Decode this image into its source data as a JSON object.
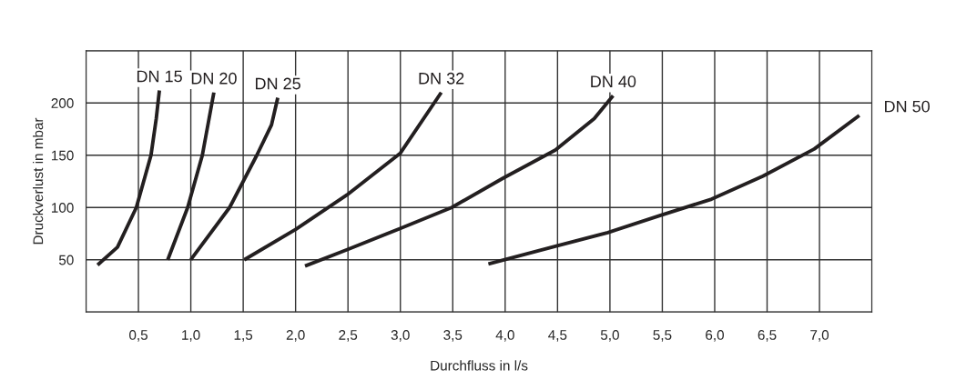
{
  "chart_data": {
    "type": "line",
    "xlabel": "Durchfluss in l/s",
    "ylabel": "Druckverlust in mbar",
    "xlim": [
      0,
      7.5
    ],
    "ylim": [
      0,
      250
    ],
    "xticks": [
      {
        "value": 0,
        "label": null
      },
      {
        "value": 0.5,
        "label": "0,5"
      },
      {
        "value": 1.0,
        "label": "1,0"
      },
      {
        "value": 1.5,
        "label": "1,5"
      },
      {
        "value": 2.0,
        "label": "2,0"
      },
      {
        "value": 2.5,
        "label": "2,5"
      },
      {
        "value": 3.0,
        "label": "3,0"
      },
      {
        "value": 3.5,
        "label": "3,5"
      },
      {
        "value": 4.0,
        "label": "4,0"
      },
      {
        "value": 4.5,
        "label": "4,5"
      },
      {
        "value": 5.0,
        "label": "5,0"
      },
      {
        "value": 5.5,
        "label": "5,5"
      },
      {
        "value": 6.0,
        "label": "6,0"
      },
      {
        "value": 6.5,
        "label": "6,5"
      },
      {
        "value": 7.0,
        "label": "7,0"
      },
      {
        "value": 7.5,
        "label": null
      }
    ],
    "yticks": [
      {
        "value": 0,
        "label": null
      },
      50,
      100,
      150,
      200,
      {
        "value": 250,
        "label": null
      }
    ],
    "grid": true,
    "legend": false,
    "marker": "none",
    "line_style": "solid",
    "series": [
      {
        "name": "DN 15",
        "color": "#231f20",
        "x": [
          0.11,
          0.3,
          0.48,
          0.62,
          0.67,
          0.7
        ],
        "values": [
          45,
          62,
          100,
          150,
          185,
          212
        ]
      },
      {
        "name": "DN 20",
        "color": "#231f20",
        "x": [
          0.78,
          0.97,
          1.11,
          1.22
        ],
        "values": [
          50,
          100,
          150,
          210
        ]
      },
      {
        "name": "DN 25",
        "color": "#231f20",
        "x": [
          1.0,
          1.37,
          1.63,
          1.77,
          1.83
        ],
        "values": [
          50,
          100,
          150,
          179,
          205
        ]
      },
      {
        "name": "DN 32",
        "color": "#231f20",
        "x": [
          1.51,
          2.0,
          2.49,
          3.0,
          3.39
        ],
        "values": [
          50,
          79,
          112,
          152,
          210
        ]
      },
      {
        "name": "DN 40",
        "color": "#231f20",
        "x": [
          2.09,
          2.5,
          3.0,
          3.49,
          3.98,
          4.48,
          4.85,
          5.03
        ],
        "values": [
          44,
          60,
          80,
          100,
          128,
          155,
          185,
          207
        ]
      },
      {
        "name": "DN 50",
        "color": "#231f20",
        "x": [
          3.84,
          4.48,
          4.98,
          5.47,
          5.97,
          6.46,
          6.95,
          7.38
        ],
        "values": [
          46,
          63,
          76,
          92,
          108,
          130,
          156,
          188
        ]
      }
    ]
  }
}
